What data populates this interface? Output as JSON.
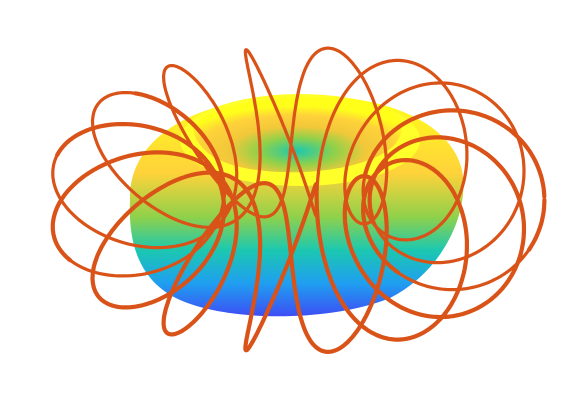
{
  "figure": {
    "background": "#ffffff",
    "surface": {
      "shape": "torus",
      "colormap": [
        "#3d4ef5",
        "#1f9ff0",
        "#1cc8b0",
        "#8fd14a",
        "#f2c83a",
        "#ffd23a",
        "#ffff1a"
      ]
    },
    "curve": {
      "shape": "torus-knot",
      "color": "#d95319"
    }
  }
}
